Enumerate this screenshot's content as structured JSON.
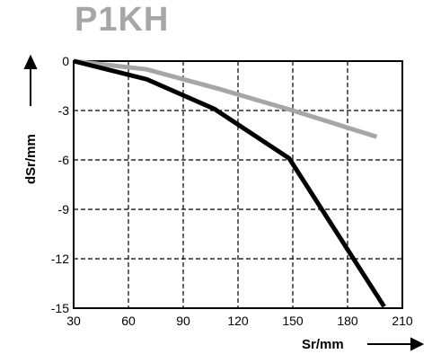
{
  "chart_data": {
    "type": "line",
    "title": "P1KH",
    "xlabel": "Sr/mm",
    "ylabel": "dSr/mm",
    "xlim": [
      30,
      210
    ],
    "ylim": [
      -15,
      0
    ],
    "xticks": [
      30,
      60,
      90,
      120,
      150,
      180,
      210
    ],
    "yticks": [
      0,
      -3,
      -6,
      -9,
      -12,
      -15
    ],
    "grid": true,
    "grid_style": "dashed",
    "series": [
      {
        "color": "#000000",
        "x": [
          30,
          70,
          107,
          148,
          200
        ],
        "y": [
          0,
          -1.1,
          -2.9,
          -5.9,
          -14.9
        ]
      },
      {
        "color": "#a6a6a6",
        "x": [
          30,
          70,
          110,
          150,
          196
        ],
        "y": [
          0,
          -0.5,
          -1.7,
          -3.0,
          -4.6
        ]
      }
    ]
  }
}
